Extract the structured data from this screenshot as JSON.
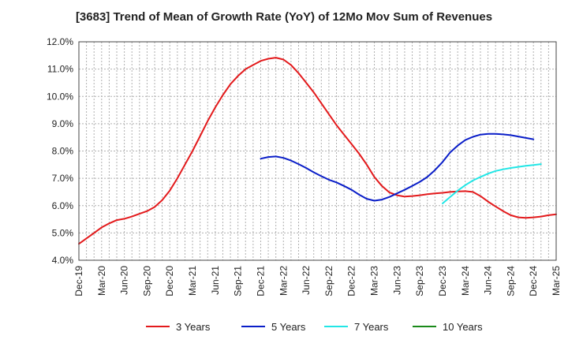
{
  "chart_data": {
    "type": "line",
    "title": "[3683]  Trend of Mean of Growth Rate (YoY) of 12Mo Mov Sum of Revenues",
    "xlabel": "",
    "ylabel": "",
    "ylim": [
      4.0,
      12.0
    ],
    "y_ticks": [
      4.0,
      5.0,
      6.0,
      7.0,
      8.0,
      9.0,
      10.0,
      11.0,
      12.0
    ],
    "y_tick_format": "percent_1dp",
    "x_start": "Dec-19",
    "x_end": "Mar-25",
    "x_tick_labels": [
      "Dec-19",
      "Mar-20",
      "Jun-20",
      "Sep-20",
      "Dec-20",
      "Mar-21",
      "Jun-21",
      "Sep-21",
      "Dec-21",
      "Mar-22",
      "Jun-22",
      "Sep-22",
      "Dec-22",
      "Mar-23",
      "Jun-23",
      "Sep-23",
      "Dec-23",
      "Mar-24",
      "Jun-24",
      "Sep-24",
      "Dec-24",
      "Mar-25"
    ],
    "grid": true,
    "legend_position": "bottom",
    "series": [
      {
        "name": "3 Years",
        "color": "#e31a1c",
        "start_month_index": 0,
        "values": [
          4.6,
          4.8,
          5.0,
          5.2,
          5.35,
          5.47,
          5.52,
          5.6,
          5.7,
          5.8,
          5.95,
          6.2,
          6.55,
          7.0,
          7.5,
          8.0,
          8.55,
          9.1,
          9.6,
          10.05,
          10.45,
          10.75,
          11.0,
          11.15,
          11.3,
          11.38,
          11.42,
          11.35,
          11.15,
          10.85,
          10.5,
          10.15,
          9.75,
          9.35,
          8.95,
          8.6,
          8.25,
          7.9,
          7.5,
          7.05,
          6.72,
          6.48,
          6.38,
          6.33,
          6.35,
          6.38,
          6.42,
          6.45,
          6.47,
          6.5,
          6.52,
          6.53,
          6.5,
          6.35,
          6.15,
          5.97,
          5.8,
          5.65,
          5.57,
          5.55,
          5.57,
          5.6,
          5.65,
          5.68
        ]
      },
      {
        "name": "5 Years",
        "color": "#0a1ec8",
        "start_month_index": 24,
        "values": [
          7.72,
          7.78,
          7.8,
          7.75,
          7.65,
          7.52,
          7.38,
          7.22,
          7.08,
          6.95,
          6.85,
          6.72,
          6.58,
          6.4,
          6.25,
          6.18,
          6.22,
          6.32,
          6.45,
          6.58,
          6.72,
          6.87,
          7.05,
          7.3,
          7.6,
          7.95,
          8.2,
          8.4,
          8.52,
          8.6,
          8.63,
          8.63,
          8.61,
          8.58,
          8.53,
          8.48,
          8.43
        ]
      },
      {
        "name": "7 Years",
        "color": "#22e6e6",
        "start_month_index": 48,
        "values": [
          6.08,
          6.32,
          6.55,
          6.75,
          6.92,
          7.05,
          7.17,
          7.27,
          7.33,
          7.38,
          7.42,
          7.46,
          7.49,
          7.52
        ]
      },
      {
        "name": "10 Years",
        "color": "#1a8a1a",
        "start_month_index": 61,
        "values": []
      }
    ]
  }
}
